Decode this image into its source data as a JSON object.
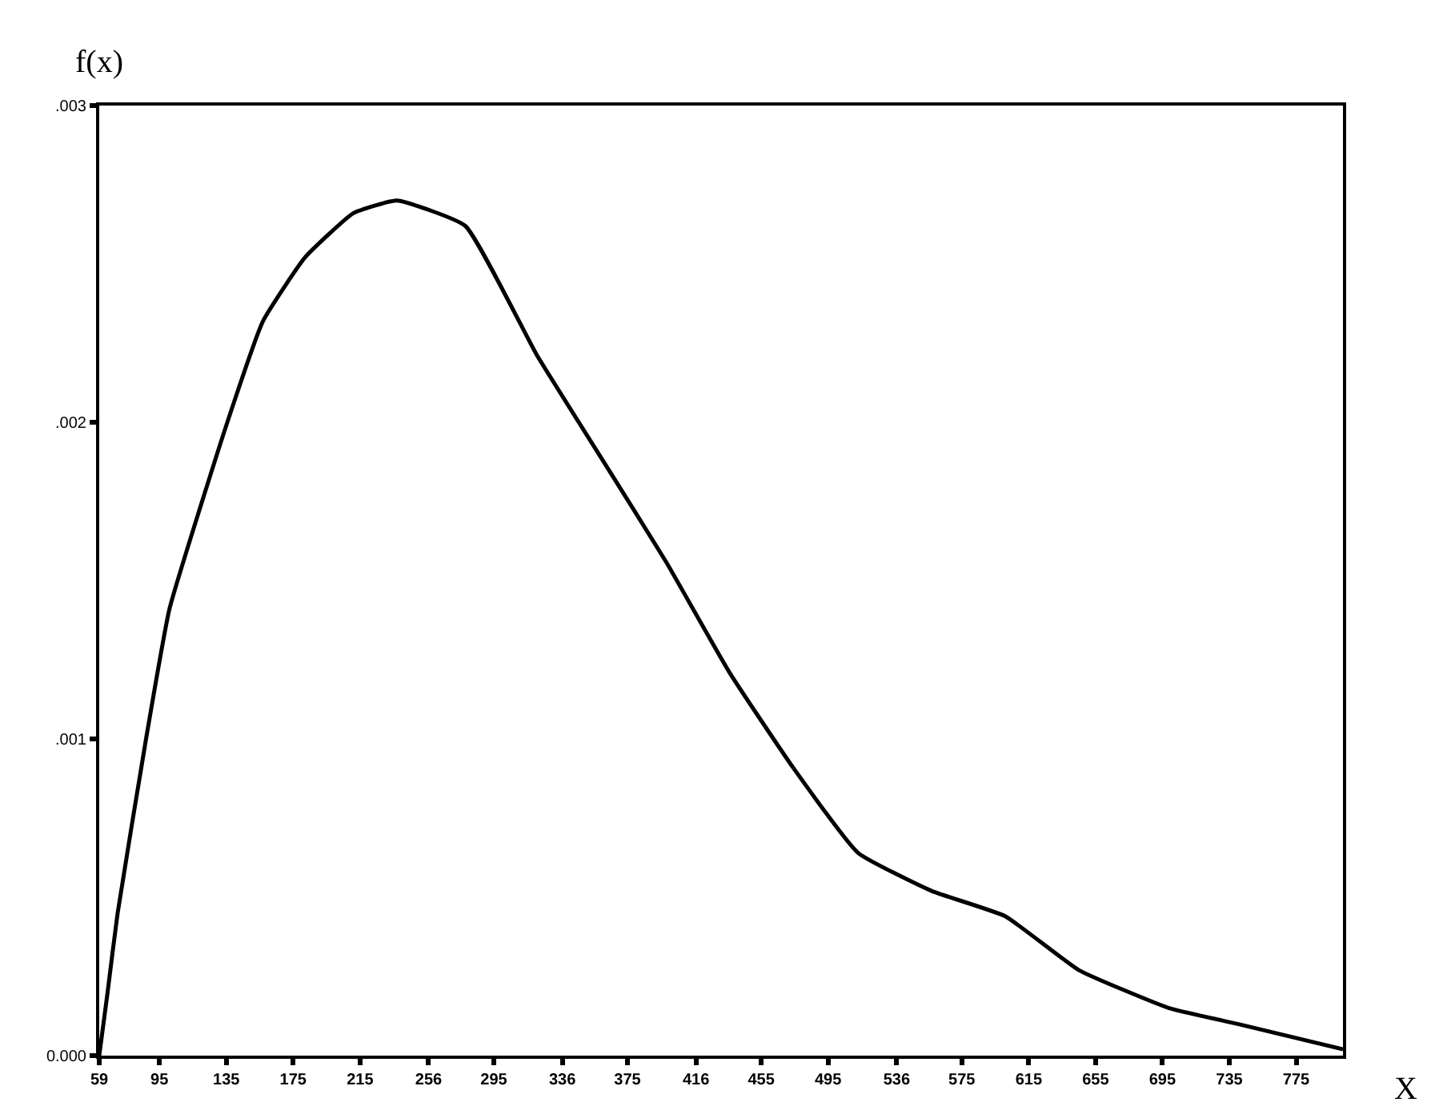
{
  "chart_data": {
    "type": "line",
    "xlabel": "X",
    "ylabel": "f(x)",
    "x": [
      59,
      64,
      70,
      87,
      101,
      135,
      157,
      182,
      211,
      237,
      278,
      321,
      359,
      398,
      436,
      474,
      513,
      557,
      601,
      645,
      699,
      740,
      803
    ],
    "series": [
      {
        "color": "#000000",
        "values": [
          0,
          0.0002,
          0.00045,
          0.001,
          0.00141,
          0.00199,
          0.00232,
          0.00252,
          0.00266,
          0.0027,
          0.00262,
          0.00221,
          0.00189,
          0.00156,
          0.00121,
          0.00091,
          0.00064,
          0.00052,
          0.00044,
          0.00027,
          0.00015,
          0.0001,
          2e-05
        ]
      }
    ],
    "xlim": [
      59,
      803
    ],
    "xticks": [
      59,
      95,
      135,
      175,
      215,
      256,
      295,
      336,
      375,
      416,
      455,
      495,
      536,
      575,
      615,
      655,
      695,
      735,
      775
    ],
    "ylim": [
      0,
      0.003
    ],
    "yticks": [
      {
        "value": 0,
        "label": "0.000"
      },
      {
        "value": 0.001,
        "label": ".001"
      },
      {
        "value": 0.002,
        "label": ".002"
      },
      {
        "value": 0.003,
        "label": ".003"
      }
    ],
    "legend": false,
    "marker": "none",
    "line_style": "solid"
  }
}
